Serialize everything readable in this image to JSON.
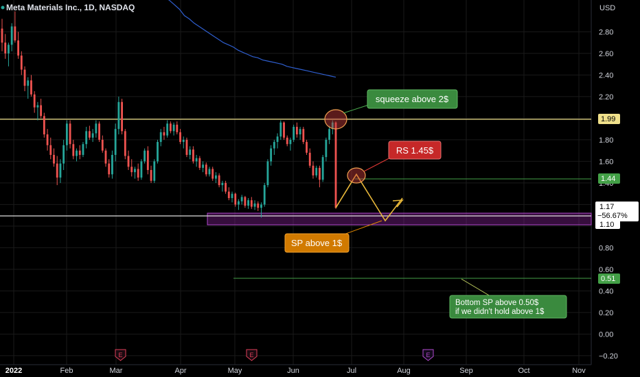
{
  "header": {
    "symbol_title": "Meta Materials Inc., 1D, NASDAQ"
  },
  "chart_data": {
    "type": "candlestick",
    "title": "Meta Materials Inc., 1D, NASDAQ",
    "currency_label": "USD",
    "ylim": [
      -0.27,
      3.05
    ],
    "y_ticks": [
      "2.80",
      "2.60",
      "2.40",
      "2.20",
      "2.00",
      "1.80",
      "1.60",
      "1.40",
      "1.20",
      "1.00",
      "0.80",
      "0.60",
      "0.40",
      "0.20",
      "0.00",
      "−0.20"
    ],
    "x_ticks": [
      "2022",
      "Feb",
      "Mar",
      "Apr",
      "May",
      "Jun",
      "Jul",
      "Aug",
      "Sep",
      "Oct",
      "Nov"
    ],
    "grid": true,
    "colors": {
      "up": "#26a69a",
      "down": "#ef5350",
      "ma": "#2f5fd0",
      "resistance": "#f0e08a",
      "green_line": "#43a047",
      "purple_zone": "#9c27b0",
      "background": "#000000",
      "grid": "#1a1a1a"
    },
    "candles_ohlc": [
      [
        2.83,
        2.92,
        2.62,
        2.7
      ],
      [
        2.7,
        2.78,
        2.55,
        2.6
      ],
      [
        2.6,
        2.7,
        2.48,
        2.68
      ],
      [
        2.68,
        2.88,
        2.62,
        2.85
      ],
      [
        2.85,
        2.99,
        2.7,
        2.72
      ],
      [
        2.72,
        2.8,
        2.55,
        2.58
      ],
      [
        2.58,
        2.62,
        2.4,
        2.45
      ],
      [
        2.45,
        2.48,
        2.25,
        2.3
      ],
      [
        2.3,
        2.38,
        2.18,
        2.35
      ],
      [
        2.35,
        2.4,
        2.2,
        2.22
      ],
      [
        2.22,
        2.25,
        2.05,
        2.1
      ],
      [
        2.1,
        2.15,
        1.98,
        2.12
      ],
      [
        2.12,
        2.18,
        2.0,
        2.02
      ],
      [
        2.02,
        2.05,
        1.82,
        1.85
      ],
      [
        1.85,
        1.9,
        1.7,
        1.75
      ],
      [
        1.75,
        1.82,
        1.62,
        1.66
      ],
      [
        1.66,
        1.72,
        1.55,
        1.58
      ],
      [
        1.58,
        1.65,
        1.38,
        1.45
      ],
      [
        1.45,
        1.62,
        1.4,
        1.58
      ],
      [
        1.58,
        1.8,
        1.52,
        1.75
      ],
      [
        1.75,
        1.98,
        1.7,
        1.95
      ],
      [
        1.95,
        1.98,
        1.72,
        1.76
      ],
      [
        1.76,
        1.8,
        1.62,
        1.65
      ],
      [
        1.65,
        1.72,
        1.6,
        1.7
      ],
      [
        1.7,
        1.75,
        1.62,
        1.66
      ],
      [
        1.66,
        1.78,
        1.64,
        1.76
      ],
      [
        1.76,
        1.92,
        1.72,
        1.88
      ],
      [
        1.88,
        1.93,
        1.8,
        1.82
      ],
      [
        1.82,
        1.9,
        1.78,
        1.86
      ],
      [
        1.86,
        1.98,
        1.82,
        1.95
      ],
      [
        1.95,
        1.97,
        1.78,
        1.8
      ],
      [
        1.8,
        1.84,
        1.68,
        1.7
      ],
      [
        1.7,
        1.72,
        1.55,
        1.58
      ],
      [
        1.58,
        1.62,
        1.45,
        1.48
      ],
      [
        1.48,
        1.7,
        1.44,
        1.66
      ],
      [
        1.66,
        1.95,
        1.6,
        1.9
      ],
      [
        1.9,
        2.2,
        1.85,
        2.15
      ],
      [
        2.15,
        2.18,
        1.85,
        1.88
      ],
      [
        1.88,
        1.9,
        1.62,
        1.65
      ],
      [
        1.65,
        1.7,
        1.52,
        1.55
      ],
      [
        1.55,
        1.62,
        1.46,
        1.5
      ],
      [
        1.5,
        1.55,
        1.44,
        1.53
      ],
      [
        1.53,
        1.58,
        1.42,
        1.45
      ],
      [
        1.45,
        1.62,
        1.43,
        1.6
      ],
      [
        1.6,
        1.72,
        1.58,
        1.7
      ],
      [
        1.7,
        1.74,
        1.48,
        1.52
      ],
      [
        1.52,
        1.56,
        1.4,
        1.42
      ],
      [
        1.42,
        1.62,
        1.4,
        1.6
      ],
      [
        1.6,
        1.8,
        1.58,
        1.78
      ],
      [
        1.78,
        1.9,
        1.74,
        1.87
      ],
      [
        1.87,
        1.92,
        1.8,
        1.84
      ],
      [
        1.84,
        1.98,
        1.82,
        1.95
      ],
      [
        1.95,
        1.97,
        1.86,
        1.88
      ],
      [
        1.88,
        1.96,
        1.84,
        1.94
      ],
      [
        1.94,
        1.97,
        1.85,
        1.87
      ],
      [
        1.87,
        1.9,
        1.76,
        1.78
      ],
      [
        1.78,
        1.83,
        1.72,
        1.8
      ],
      [
        1.8,
        1.82,
        1.64,
        1.66
      ],
      [
        1.66,
        1.74,
        1.62,
        1.71
      ],
      [
        1.71,
        1.74,
        1.58,
        1.6
      ],
      [
        1.6,
        1.66,
        1.55,
        1.63
      ],
      [
        1.63,
        1.65,
        1.52,
        1.54
      ],
      [
        1.54,
        1.6,
        1.5,
        1.57
      ],
      [
        1.57,
        1.59,
        1.46,
        1.48
      ],
      [
        1.48,
        1.55,
        1.46,
        1.53
      ],
      [
        1.53,
        1.55,
        1.42,
        1.44
      ],
      [
        1.44,
        1.5,
        1.4,
        1.47
      ],
      [
        1.47,
        1.49,
        1.36,
        1.38
      ],
      [
        1.38,
        1.42,
        1.32,
        1.4
      ],
      [
        1.4,
        1.42,
        1.3,
        1.32
      ],
      [
        1.32,
        1.36,
        1.24,
        1.26
      ],
      [
        1.26,
        1.32,
        1.22,
        1.3
      ],
      [
        1.3,
        1.31,
        1.18,
        1.2
      ],
      [
        1.2,
        1.25,
        1.15,
        1.23
      ],
      [
        1.23,
        1.29,
        1.2,
        1.27
      ],
      [
        1.27,
        1.28,
        1.17,
        1.19
      ],
      [
        1.19,
        1.26,
        1.16,
        1.24
      ],
      [
        1.24,
        1.27,
        1.16,
        1.18
      ],
      [
        1.18,
        1.24,
        1.15,
        1.21
      ],
      [
        1.21,
        1.23,
        1.14,
        1.17
      ],
      [
        1.17,
        1.22,
        1.08,
        1.2
      ],
      [
        1.2,
        1.4,
        1.18,
        1.38
      ],
      [
        1.38,
        1.62,
        1.36,
        1.6
      ],
      [
        1.6,
        1.75,
        1.56,
        1.72
      ],
      [
        1.72,
        1.8,
        1.66,
        1.78
      ],
      [
        1.78,
        1.86,
        1.72,
        1.83
      ],
      [
        1.83,
        1.98,
        1.8,
        1.96
      ],
      [
        1.96,
        1.97,
        1.8,
        1.82
      ],
      [
        1.82,
        1.84,
        1.74,
        1.76
      ],
      [
        1.76,
        1.82,
        1.7,
        1.8
      ],
      [
        1.8,
        1.94,
        1.78,
        1.92
      ],
      [
        1.92,
        1.96,
        1.82,
        1.85
      ],
      [
        1.85,
        1.92,
        1.8,
        1.9
      ],
      [
        1.9,
        1.92,
        1.76,
        1.78
      ],
      [
        1.78,
        1.8,
        1.66,
        1.68
      ],
      [
        1.68,
        1.72,
        1.54,
        1.56
      ],
      [
        1.56,
        1.6,
        1.44,
        1.47
      ],
      [
        1.47,
        1.56,
        1.45,
        1.54
      ],
      [
        1.54,
        1.56,
        1.36,
        1.43
      ],
      [
        1.43,
        1.66,
        1.41,
        1.64
      ],
      [
        1.64,
        1.82,
        1.6,
        1.8
      ],
      [
        1.8,
        1.93,
        1.76,
        1.9
      ],
      [
        1.9,
        1.98,
        1.85,
        1.96
      ],
      [
        1.96,
        1.97,
        1.16,
        1.17
      ]
    ],
    "moving_average": [
      [
        3.12,
        3.09
      ],
      [
        3.05,
        3.01
      ],
      [
        2.95,
        2.92
      ],
      [
        2.88,
        2.85
      ],
      [
        2.82,
        2.79
      ],
      [
        2.76,
        2.73
      ],
      [
        2.7,
        2.68
      ],
      [
        2.66,
        2.63
      ],
      [
        2.61,
        2.59
      ],
      [
        2.57,
        2.56
      ],
      [
        2.54,
        2.53
      ],
      [
        2.52,
        2.51
      ],
      [
        2.5,
        2.48
      ],
      [
        2.47,
        2.46
      ],
      [
        2.45,
        2.44
      ],
      [
        2.43,
        2.42
      ],
      [
        2.41,
        2.4
      ],
      [
        2.39,
        2.38
      ]
    ],
    "horizontal_levels": [
      {
        "value": "1.99",
        "kind": "resistance"
      },
      {
        "value": "1.44",
        "kind": "support"
      },
      {
        "value": "1.17",
        "kind": "current"
      },
      {
        "value": "1.10",
        "kind": "zone-bottom"
      },
      {
        "value": "0.51",
        "kind": "target"
      }
    ],
    "price_labels": {
      "p199": "1.99",
      "p144": "1.44",
      "p117": "1.17",
      "pct": "−56.67%",
      "p110": "1.10",
      "p051": "0.51"
    },
    "annotations": {
      "squeeze": "squeeze above 2$",
      "rs": "RS 1.45$",
      "sp": "SP above 1$",
      "bottom_line1": "Bottom SP above 0.50$",
      "bottom_line2": "if we didn't hold above 1$"
    },
    "earnings_marker": "E",
    "projection_path": [
      [
        1.17
      ],
      [
        1.48
      ],
      [
        1.05
      ],
      [
        1.26
      ]
    ]
  }
}
